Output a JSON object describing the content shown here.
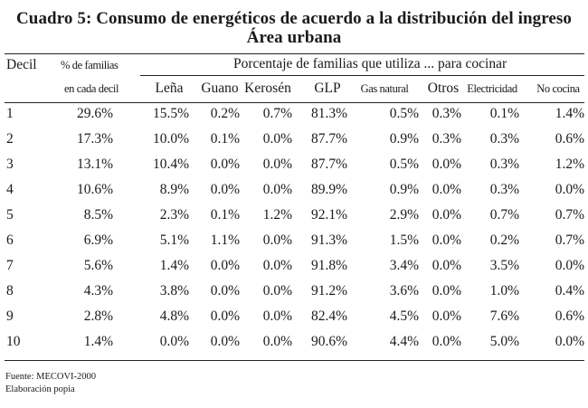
{
  "title": {
    "line1": "Cuadro 5: Consumo de energéticos de acuerdo a la distribución del ingreso",
    "line2": "Área urbana"
  },
  "headers": {
    "decil": "Decil",
    "pct_families_line1": "% de familias",
    "pct_families_line2": "en cada decil",
    "group": "Porcentaje de familias que utiliza ... para cocinar",
    "columns": [
      "Leña",
      "Guano",
      "Kerosén",
      "GLP",
      "Gas natural",
      "Otros",
      "Electricidad",
      "No cocina"
    ]
  },
  "rows": [
    {
      "decil": "1",
      "pct": "29.6%",
      "values": [
        "15.5%",
        "0.2%",
        "0.7%",
        "81.3%",
        "0.5%",
        "0.3%",
        "0.1%",
        "1.4%"
      ]
    },
    {
      "decil": "2",
      "pct": "17.3%",
      "values": [
        "10.0%",
        "0.1%",
        "0.0%",
        "87.7%",
        "0.9%",
        "0.3%",
        "0.3%",
        "0.6%"
      ]
    },
    {
      "decil": "3",
      "pct": "13.1%",
      "values": [
        "10.4%",
        "0.0%",
        "0.0%",
        "87.7%",
        "0.5%",
        "0.0%",
        "0.3%",
        "1.2%"
      ]
    },
    {
      "decil": "4",
      "pct": "10.6%",
      "values": [
        "8.9%",
        "0.0%",
        "0.0%",
        "89.9%",
        "0.9%",
        "0.0%",
        "0.3%",
        "0.0%"
      ]
    },
    {
      "decil": "5",
      "pct": "8.5%",
      "values": [
        "2.3%",
        "0.1%",
        "1.2%",
        "92.1%",
        "2.9%",
        "0.0%",
        "0.7%",
        "0.7%"
      ]
    },
    {
      "decil": "6",
      "pct": "6.9%",
      "values": [
        "5.1%",
        "1.1%",
        "0.0%",
        "91.3%",
        "1.5%",
        "0.0%",
        "0.2%",
        "0.7%"
      ]
    },
    {
      "decil": "7",
      "pct": "5.6%",
      "values": [
        "1.4%",
        "0.0%",
        "0.0%",
        "91.8%",
        "3.4%",
        "0.0%",
        "3.5%",
        "0.0%"
      ]
    },
    {
      "decil": "8",
      "pct": "4.3%",
      "values": [
        "3.8%",
        "0.0%",
        "0.0%",
        "91.2%",
        "3.6%",
        "0.0%",
        "1.0%",
        "0.4%"
      ]
    },
    {
      "decil": "9",
      "pct": "2.8%",
      "values": [
        "4.8%",
        "0.0%",
        "0.0%",
        "82.4%",
        "4.5%",
        "0.0%",
        "7.6%",
        "0.6%"
      ]
    },
    {
      "decil": "10",
      "pct": "1.4%",
      "values": [
        "0.0%",
        "0.0%",
        "0.0%",
        "90.6%",
        "4.4%",
        "0.0%",
        "5.0%",
        "0.0%"
      ]
    }
  ],
  "footer": {
    "source": "Fuente: MECOVI-2000",
    "elaboration": "Elaboración popia"
  }
}
